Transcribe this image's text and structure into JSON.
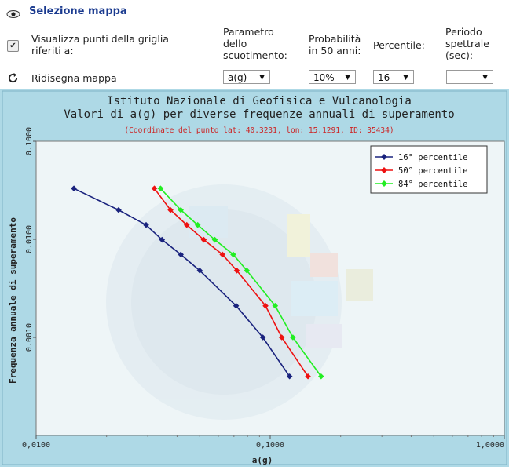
{
  "header": {
    "title": "Selezione mappa",
    "show_points_label": "Visualizza punti della griglia riferiti a:",
    "show_points_line1": "Visualizza punti della griglia",
    "show_points_line2": "riferiti a:",
    "redraw_label": "Ridisegna mappa",
    "param_label": [
      "Parametro",
      "dello",
      "scuotimento:"
    ],
    "prob_label": [
      "Probabilità",
      "in 50 anni:"
    ],
    "perc_label": "Percentile:",
    "period_label": [
      "Periodo",
      "spettrale",
      "(sec):"
    ],
    "param_value": "a(g)",
    "prob_value": "10%",
    "perc_value": "16",
    "period_value": ""
  },
  "colors": {
    "accent": "#1a3a8f",
    "background": "#aed9e6",
    "series_16": "#1a237e",
    "series_50": "#ee1111",
    "series_84": "#22ee22"
  },
  "chart_data": {
    "type": "line",
    "title": "Istituto Nazionale di Geofisica e Vulcanologia",
    "subtitle": "Valori di a(g) per diverse frequenze annuali di superamento",
    "caption": "(Coordinate del punto lat: 40.3231, lon: 15.1291, ID: 35434)",
    "xlabel": "a(g)",
    "ylabel": "Frequenza annuale di superamento",
    "xscale": "log",
    "yscale": "log",
    "xlim": [
      0.01,
      1.0
    ],
    "ylim": [
      0.0001,
      0.1
    ],
    "xticks": [
      "0,0100",
      "0,1000",
      "1,0000"
    ],
    "yticks": [
      "0.1000",
      "0.0100",
      "0.0010"
    ],
    "legend_position": "top-right",
    "y": [
      0.033,
      0.0199,
      0.014,
      0.0099,
      0.007,
      0.0048,
      0.0021,
      0.001,
      0.0004
    ],
    "series": [
      {
        "name": "16° percentile",
        "color": "#1a237e",
        "x": [
          0.0145,
          0.0225,
          0.0295,
          0.0345,
          0.0415,
          0.05,
          0.0715,
          0.093,
          0.121
        ]
      },
      {
        "name": "50° percentile",
        "color": "#ee1111",
        "x": [
          0.032,
          0.0375,
          0.044,
          0.052,
          0.0625,
          0.072,
          0.0955,
          0.112,
          0.145
        ]
      },
      {
        "name": "84° percentile",
        "color": "#22ee22",
        "x": [
          0.034,
          0.0415,
          0.049,
          0.058,
          0.0695,
          0.0795,
          0.105,
          0.125,
          0.165
        ]
      }
    ]
  }
}
